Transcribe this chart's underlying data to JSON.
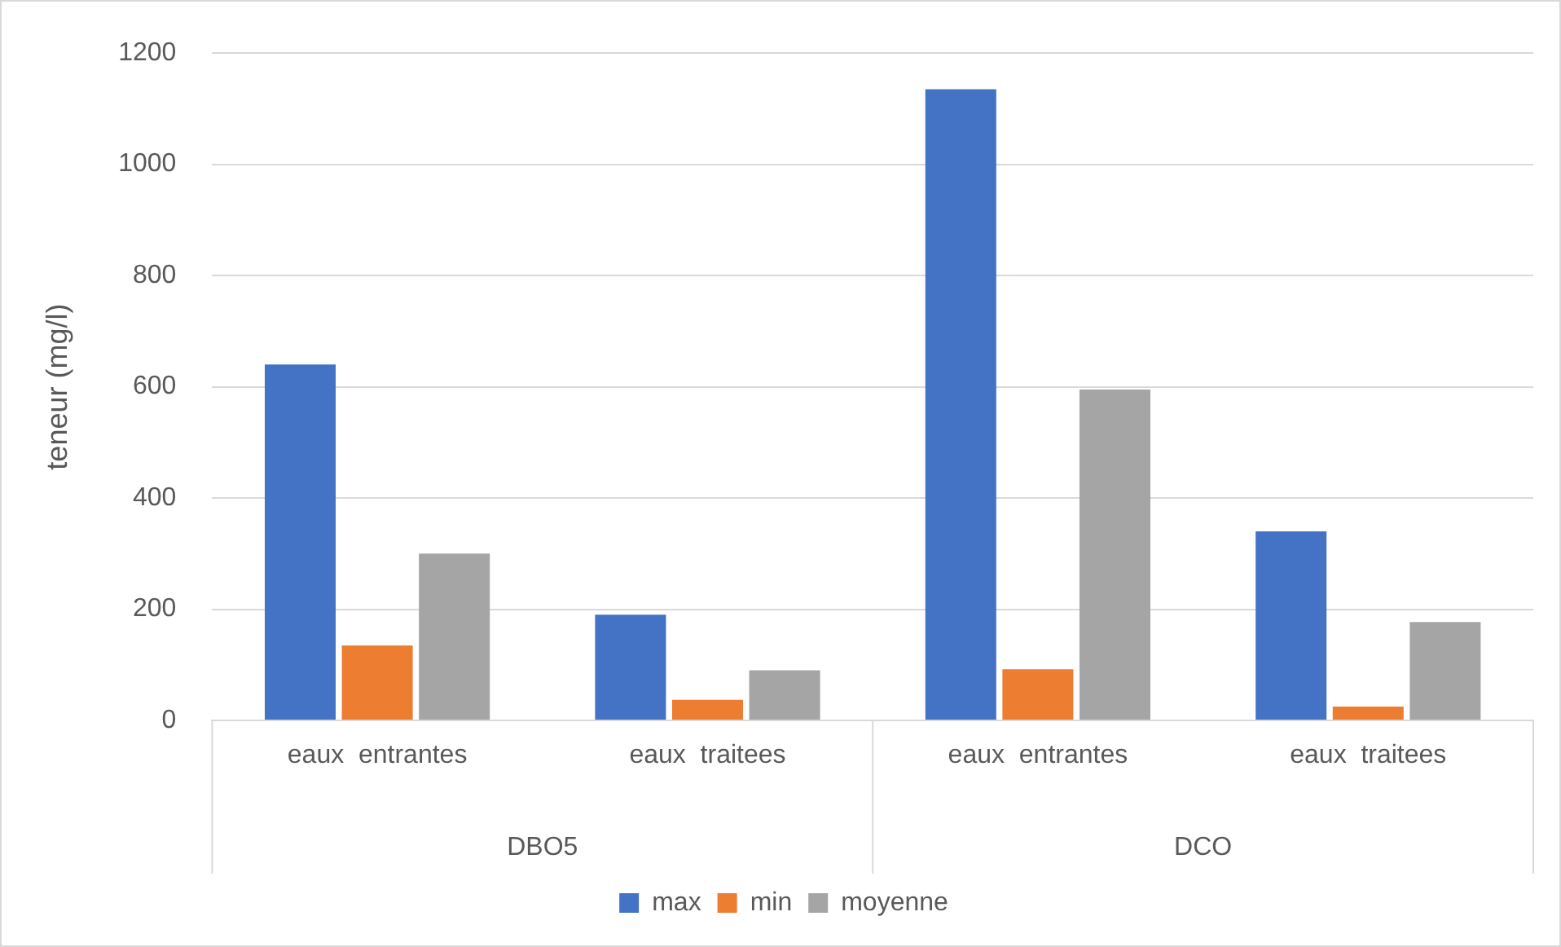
{
  "chart_data": {
    "type": "bar",
    "ylabel": "teneur (mg/l)",
    "categories": [
      "eaux  entrantes",
      "eaux  traitees",
      "eaux  entrantes",
      "eaux  traitees"
    ],
    "series": [
      {
        "name": "max",
        "color": "#4472c4",
        "values": [
          640,
          190,
          1135,
          340
        ]
      },
      {
        "name": "min",
        "color": "#ed7d31",
        "values": [
          135,
          37,
          92,
          25
        ]
      },
      {
        "name": "moyenne",
        "color": "#a5a5a5",
        "values": [
          300,
          90,
          595,
          177
        ]
      }
    ],
    "annotations": [
      "DBO5",
      "DCO"
    ],
    "ylim": [
      0,
      1200
    ],
    "yticks": [
      0,
      200,
      400,
      600,
      800,
      1000,
      1200
    ],
    "grid": "y",
    "legend": "bottom"
  }
}
